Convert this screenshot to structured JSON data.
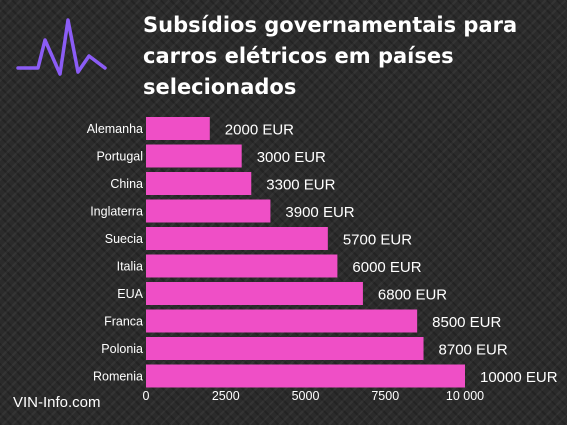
{
  "title": "Subsídios governamentais para carros elétricos em países selecionados",
  "source": "VIN-Info.com",
  "logo_icon": "pulse-line-icon",
  "colors": {
    "bar": "#ef4fc6",
    "logo": "#8b5cf6",
    "text": "#ffffff",
    "background": "#2b2b2b"
  },
  "chart_data": {
    "type": "bar",
    "orientation": "horizontal",
    "categories": [
      "Alemanha",
      "Portugal",
      "China",
      "Inglaterra",
      "Suecia",
      "Italia",
      "EUA",
      "Franca",
      "Polonia",
      "Romenia"
    ],
    "values": [
      2000,
      3000,
      3300,
      3900,
      5700,
      6000,
      6800,
      8500,
      8700,
      10000
    ],
    "value_labels": [
      "2000 EUR",
      "3000 EUR",
      "3300 EUR",
      "3900 EUR",
      "5700 EUR",
      "6000 EUR",
      "6800 EUR",
      "8500 EUR",
      "8700 EUR",
      "10000 EUR"
    ],
    "x_ticks": [
      0,
      2500,
      5000,
      7500,
      10000
    ],
    "x_tick_labels": [
      "0",
      "2500",
      "5000",
      "7500",
      "10 000"
    ],
    "xlim": [
      0,
      10000
    ],
    "grid": false,
    "legend": "none"
  }
}
